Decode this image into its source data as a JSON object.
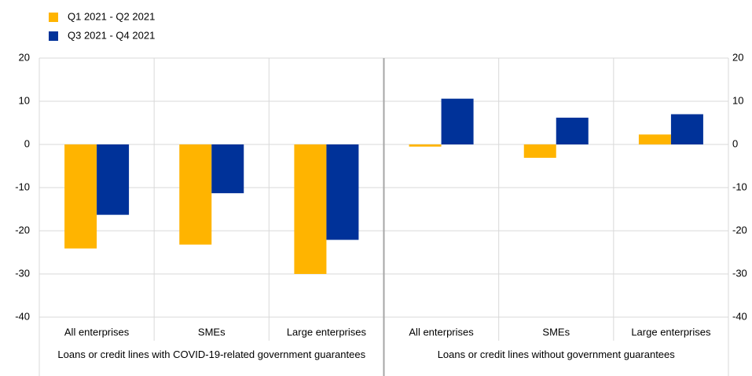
{
  "chart_data": {
    "type": "bar",
    "groups": [
      {
        "name": "Loans or credit lines with COVID-19-related government guarantees",
        "categories": [
          "All enterprises",
          "SMEs",
          "Large enterprises"
        ]
      },
      {
        "name": "Loans or credit lines without government guarantees",
        "categories": [
          "All enterprises",
          "SMEs",
          "Large enterprises"
        ]
      }
    ],
    "series": [
      {
        "name": "Q1 2021 - Q2 2021",
        "color": "#ffb400",
        "values": [
          -24.1,
          -23.2,
          -30.0,
          -0.5,
          -3.1,
          2.3
        ]
      },
      {
        "name": "Q3 2021 - Q4 2021",
        "color": "#003299",
        "values": [
          -16.3,
          -11.3,
          -22.1,
          10.6,
          6.2,
          7.0
        ]
      }
    ],
    "ylim": [
      -40,
      20
    ],
    "yticks": [
      -40,
      -30,
      -20,
      -10,
      0,
      10,
      20
    ],
    "grid": true
  }
}
